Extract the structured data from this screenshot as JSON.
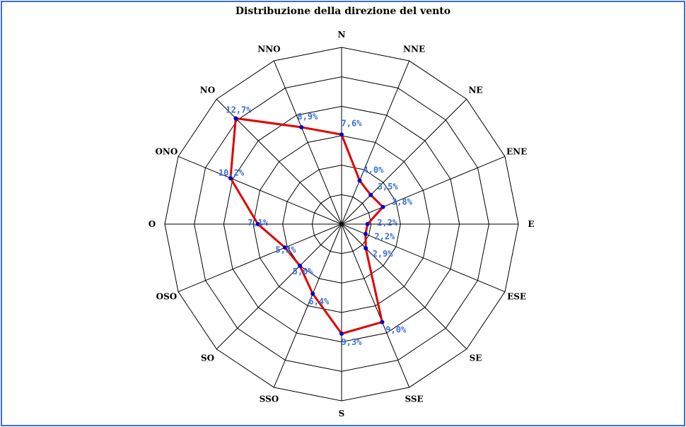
{
  "chart_data": {
    "type": "radar",
    "title": "Distribuzione della direzione del vento",
    "directions": [
      "N",
      "NNE",
      "NE",
      "ENE",
      "E",
      "ESE",
      "SE",
      "SSE",
      "S",
      "SSO",
      "SO",
      "OSO",
      "O",
      "ONO",
      "NO",
      "NNO"
    ],
    "values": [
      7.6,
      4.0,
      3.5,
      3.8,
      2.2,
      2.2,
      2.9,
      9.0,
      9.3,
      6.4,
      5.0,
      5.2,
      7.1,
      10.2,
      12.7,
      8.9
    ],
    "value_labels": [
      "7,6%",
      "4,0%",
      "3,5%",
      "3,8%",
      "2,2%",
      "2,2%",
      "2,9%",
      "9,0%",
      "9,3%",
      "6,4%",
      "5,0%",
      "5,2%",
      "7,1%",
      "10,2%",
      "12,7%",
      "8,9%"
    ],
    "rmax": 15,
    "rings": 6,
    "grid": true,
    "colors": {
      "line": "#e00000",
      "marker": "#0000cc",
      "label": "#3a6fd8",
      "grid": "#000000",
      "frame": "#3a6fd8"
    }
  }
}
